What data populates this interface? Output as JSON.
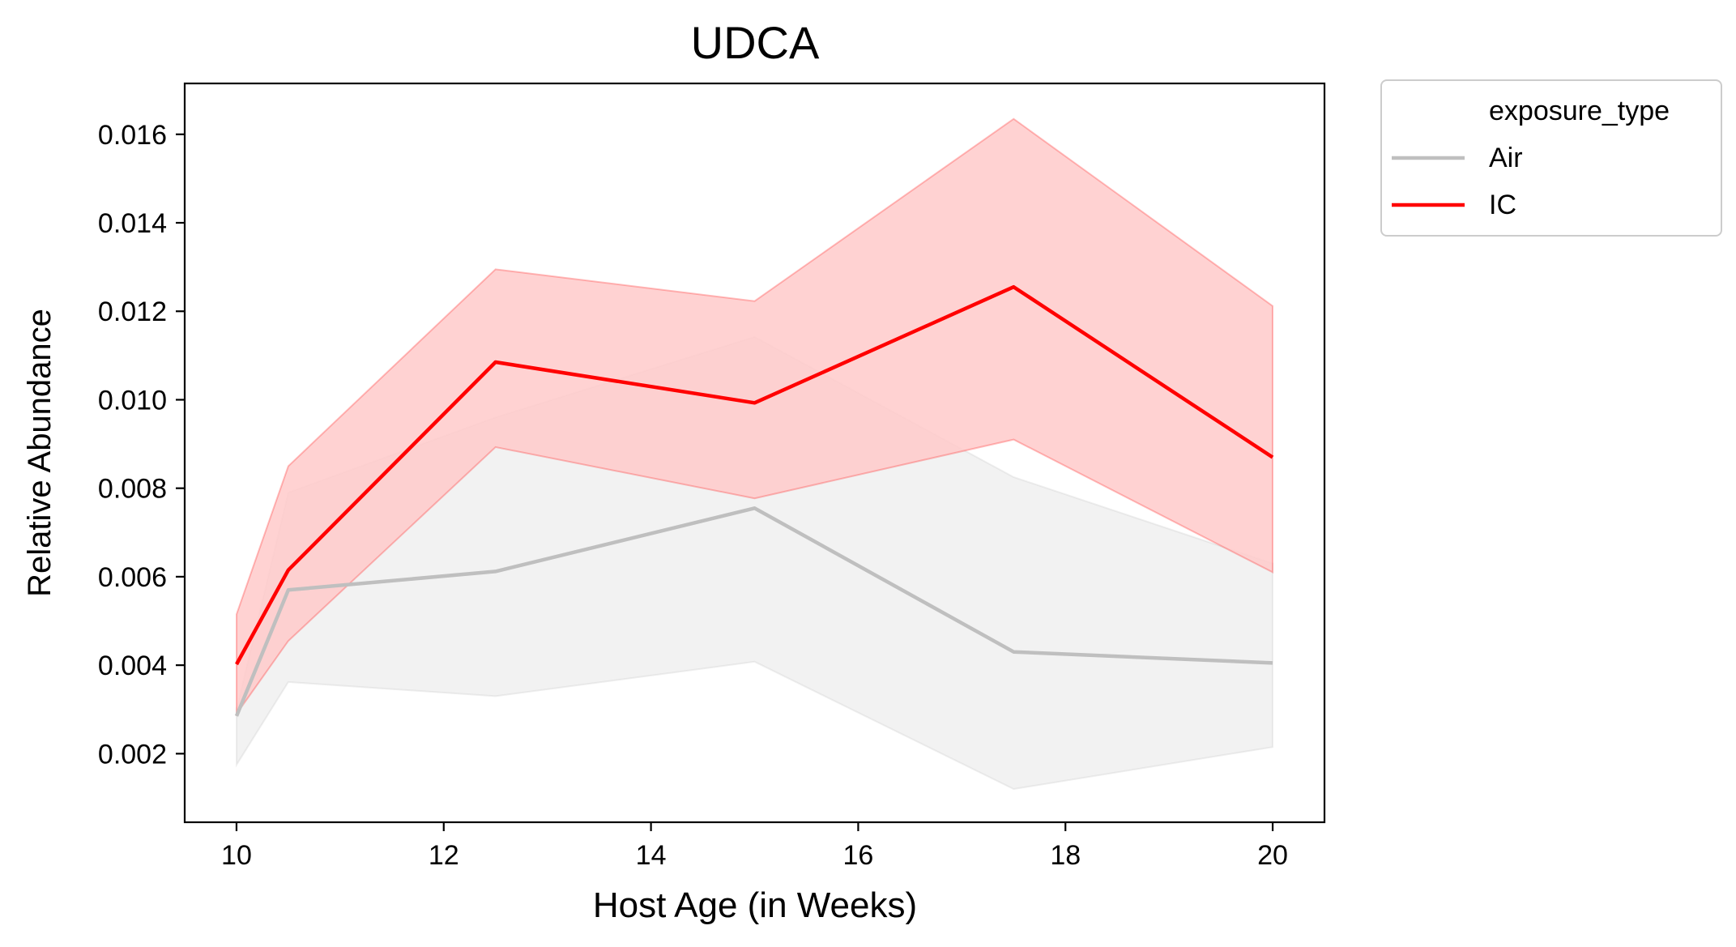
{
  "chart_data": {
    "type": "line",
    "title": "UDCA",
    "xlabel": "Host Age (in Weeks)",
    "ylabel": "Relative Abundance",
    "xlim": [
      9.5,
      20.5
    ],
    "ylim": [
      0.00045,
      0.01715
    ],
    "xticks": [
      10,
      12,
      14,
      16,
      18,
      20
    ],
    "xtick_labels": [
      "10",
      "12",
      "14",
      "16",
      "18",
      "20"
    ],
    "yticks": [
      0.002,
      0.004,
      0.006,
      0.008,
      0.01,
      0.012,
      0.014,
      0.016
    ],
    "ytick_labels": [
      "0.002",
      "0.004",
      "0.006",
      "0.008",
      "0.010",
      "0.012",
      "0.014",
      "0.016"
    ],
    "grid": false,
    "legend": {
      "placement": "outside-top-right",
      "title": "exposure_type",
      "entries": [
        "Air",
        "IC"
      ]
    },
    "x": [
      10,
      10.5,
      12.5,
      15,
      17.5,
      20
    ],
    "series": [
      {
        "name": "Air",
        "color": "#bfbfbf",
        "band_color": "#f0f0f0",
        "values": [
          0.00285,
          0.0057,
          0.00612,
          0.00755,
          0.0043,
          0.00405
        ],
        "ci_upper": [
          0.003,
          0.0079,
          0.0096,
          0.01142,
          0.00825,
          0.0063
        ],
        "ci_lower": [
          0.00175,
          0.00362,
          0.0033,
          0.00408,
          0.0012,
          0.00215
        ]
      },
      {
        "name": "IC",
        "color": "#ff0000",
        "band_color": "#ffcaca",
        "values": [
          0.00402,
          0.00615,
          0.01085,
          0.00993,
          0.01255,
          0.0087
        ],
        "ci_upper": [
          0.00515,
          0.0085,
          0.01295,
          0.01223,
          0.01635,
          0.01212
        ],
        "ci_lower": [
          0.0029,
          0.00455,
          0.00893,
          0.00777,
          0.0091,
          0.0061
        ]
      }
    ]
  }
}
